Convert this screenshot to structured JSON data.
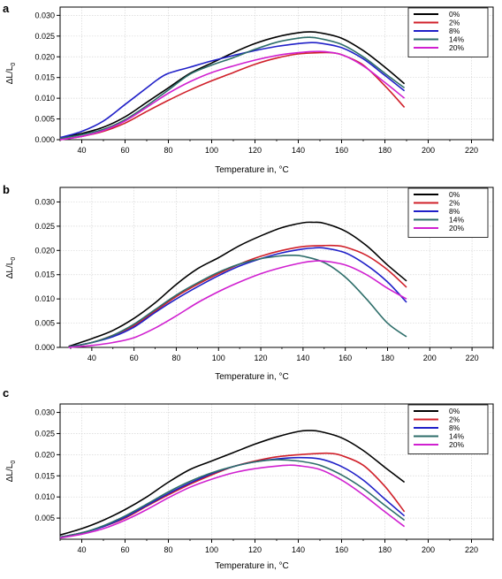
{
  "panels": [
    {
      "letter": "a"
    },
    {
      "letter": "b"
    },
    {
      "letter": "c"
    }
  ],
  "chart_data": [
    {
      "type": "line",
      "panel": "a",
      "xlabel": "Temperature in, °C",
      "ylabel": "ΔL/L0",
      "xlim": [
        30,
        230
      ],
      "ylim": [
        0,
        0.032
      ],
      "xticks": [
        40,
        60,
        80,
        100,
        120,
        140,
        160,
        180,
        200,
        220
      ],
      "yticks": [
        0.0,
        0.005,
        0.01,
        0.015,
        0.02,
        0.025,
        0.03
      ],
      "ytick_labels": [
        "0.000",
        "0.005",
        "0.010",
        "0.015",
        "0.020",
        "0.025",
        "0.030"
      ],
      "grid": true,
      "legend": "top-right",
      "series": [
        {
          "name": "0%",
          "color": "#000000",
          "x": [
            30,
            40,
            50,
            60,
            70,
            80,
            90,
            100,
            110,
            120,
            130,
            140,
            145,
            150,
            160,
            170,
            180,
            189
          ],
          "y": [
            0.0005,
            0.0015,
            0.003,
            0.0055,
            0.009,
            0.0125,
            0.016,
            0.0185,
            0.021,
            0.0232,
            0.0248,
            0.0258,
            0.026,
            0.0258,
            0.0245,
            0.0215,
            0.0175,
            0.0135
          ]
        },
        {
          "name": "2%",
          "color": "#d0202a",
          "x": [
            30,
            40,
            50,
            60,
            70,
            80,
            90,
            100,
            110,
            120,
            130,
            140,
            150,
            155,
            160,
            170,
            180,
            189
          ],
          "y": [
            0.0,
            0.0008,
            0.002,
            0.004,
            0.0068,
            0.0095,
            0.012,
            0.0142,
            0.0162,
            0.0182,
            0.0197,
            0.0207,
            0.021,
            0.021,
            0.0205,
            0.018,
            0.013,
            0.0078
          ]
        },
        {
          "name": "8%",
          "color": "#2020c8",
          "x": [
            30,
            40,
            50,
            60,
            70,
            75,
            80,
            90,
            100,
            110,
            120,
            130,
            140,
            145,
            150,
            160,
            170,
            180,
            189
          ],
          "y": [
            0.0005,
            0.002,
            0.0045,
            0.0085,
            0.0125,
            0.0145,
            0.016,
            0.0175,
            0.019,
            0.0203,
            0.0215,
            0.0225,
            0.0232,
            0.0234,
            0.0233,
            0.0222,
            0.0195,
            0.0155,
            0.0118
          ]
        },
        {
          "name": "14%",
          "color": "#2e6e6a",
          "x": [
            30,
            40,
            50,
            60,
            70,
            80,
            90,
            100,
            110,
            120,
            130,
            140,
            145,
            150,
            160,
            170,
            180,
            189
          ],
          "y": [
            0.0003,
            0.0012,
            0.0025,
            0.0048,
            0.0082,
            0.012,
            0.0158,
            0.018,
            0.0198,
            0.0218,
            0.0235,
            0.0245,
            0.0247,
            0.0244,
            0.023,
            0.02,
            0.016,
            0.0125
          ]
        },
        {
          "name": "20%",
          "color": "#d020d0",
          "x": [
            30,
            40,
            50,
            60,
            70,
            80,
            90,
            100,
            110,
            120,
            130,
            140,
            150,
            160,
            170,
            180,
            189
          ],
          "y": [
            0.0,
            0.0008,
            0.0022,
            0.0045,
            0.0078,
            0.0112,
            0.014,
            0.0162,
            0.0178,
            0.0192,
            0.0203,
            0.021,
            0.0213,
            0.0205,
            0.0178,
            0.0138,
            0.01
          ]
        }
      ]
    },
    {
      "type": "line",
      "panel": "b",
      "xlabel": "Temperature in, °C",
      "ylabel": "ΔL/L0",
      "xlim": [
        25,
        230
      ],
      "ylim": [
        0,
        0.033
      ],
      "xticks": [
        40,
        60,
        80,
        100,
        120,
        140,
        160,
        180,
        200,
        220
      ],
      "yticks": [
        0.0,
        0.005,
        0.01,
        0.015,
        0.02,
        0.025,
        0.03
      ],
      "ytick_labels": [
        "0.000",
        "0.005",
        "0.010",
        "0.015",
        "0.020",
        "0.025",
        "0.030"
      ],
      "grid": true,
      "legend": "top-right",
      "series": [
        {
          "name": "0%",
          "color": "#000000",
          "x": [
            29,
            40,
            50,
            60,
            70,
            80,
            90,
            100,
            110,
            120,
            130,
            140,
            145,
            150,
            160,
            170,
            180,
            189
          ],
          "y": [
            0.0002,
            0.0018,
            0.0035,
            0.006,
            0.0092,
            0.013,
            0.0162,
            0.0185,
            0.021,
            0.023,
            0.0247,
            0.0257,
            0.0258,
            0.0256,
            0.024,
            0.021,
            0.017,
            0.0137
          ]
        },
        {
          "name": "2%",
          "color": "#d0202a",
          "x": [
            29,
            40,
            50,
            60,
            70,
            80,
            90,
            100,
            110,
            120,
            130,
            140,
            150,
            155,
            160,
            170,
            180,
            189
          ],
          "y": [
            0.0001,
            0.001,
            0.0025,
            0.0045,
            0.0075,
            0.0105,
            0.013,
            0.0152,
            0.0172,
            0.0188,
            0.02,
            0.0208,
            0.021,
            0.021,
            0.0207,
            0.019,
            0.016,
            0.0124
          ]
        },
        {
          "name": "8%",
          "color": "#2020c8",
          "x": [
            29,
            40,
            50,
            60,
            70,
            80,
            90,
            100,
            110,
            120,
            130,
            140,
            145,
            150,
            160,
            170,
            180,
            189
          ],
          "y": [
            0.0001,
            0.001,
            0.0022,
            0.0042,
            0.0072,
            0.01,
            0.0125,
            0.0148,
            0.0168,
            0.0183,
            0.0195,
            0.0203,
            0.0205,
            0.0205,
            0.0195,
            0.017,
            0.0135,
            0.0093
          ]
        },
        {
          "name": "14%",
          "color": "#2e6e6a",
          "x": [
            29,
            40,
            50,
            60,
            70,
            80,
            90,
            100,
            110,
            120,
            130,
            135,
            140,
            150,
            160,
            170,
            180,
            189
          ],
          "y": [
            0.0001,
            0.001,
            0.0025,
            0.0048,
            0.0078,
            0.0108,
            0.0133,
            0.0155,
            0.0172,
            0.0183,
            0.0189,
            0.019,
            0.0188,
            0.0175,
            0.0145,
            0.01,
            0.005,
            0.0022
          ]
        },
        {
          "name": "20%",
          "color": "#d020d0",
          "x": [
            29,
            40,
            50,
            60,
            70,
            80,
            90,
            100,
            110,
            120,
            130,
            140,
            145,
            150,
            160,
            170,
            180,
            189
          ],
          "y": [
            0.0,
            0.0004,
            0.001,
            0.002,
            0.004,
            0.0065,
            0.0092,
            0.0115,
            0.0135,
            0.0152,
            0.0165,
            0.0175,
            0.0178,
            0.0178,
            0.017,
            0.015,
            0.0122,
            0.01
          ]
        }
      ]
    },
    {
      "type": "line",
      "panel": "c",
      "xlabel": "Temperature in, °C",
      "ylabel": "ΔL/L0",
      "xlim": [
        30,
        230
      ],
      "ylim": [
        0,
        0.032
      ],
      "xticks": [
        40,
        60,
        80,
        100,
        120,
        140,
        160,
        180,
        200,
        220
      ],
      "yticks": [
        0.005,
        0.01,
        0.015,
        0.02,
        0.025,
        0.03
      ],
      "ytick_labels": [
        "0.005",
        "0.010",
        "0.015",
        "0.020",
        "0.025",
        "0.030"
      ],
      "grid": true,
      "legend": "top-right",
      "series": [
        {
          "name": "0%",
          "color": "#000000",
          "x": [
            30,
            40,
            50,
            60,
            70,
            80,
            90,
            100,
            110,
            120,
            130,
            140,
            145,
            150,
            160,
            170,
            180,
            189
          ],
          "y": [
            0.001,
            0.0025,
            0.0045,
            0.007,
            0.01,
            0.0135,
            0.0165,
            0.0185,
            0.0205,
            0.0225,
            0.0242,
            0.0255,
            0.0257,
            0.0255,
            0.024,
            0.021,
            0.017,
            0.0135
          ]
        },
        {
          "name": "2%",
          "color": "#d0202a",
          "x": [
            30,
            40,
            50,
            60,
            70,
            80,
            90,
            100,
            110,
            120,
            130,
            140,
            150,
            155,
            160,
            170,
            180,
            189
          ],
          "y": [
            0.0005,
            0.0015,
            0.003,
            0.005,
            0.0078,
            0.0105,
            0.013,
            0.0152,
            0.0172,
            0.0185,
            0.0195,
            0.02,
            0.0203,
            0.0203,
            0.0198,
            0.0175,
            0.0125,
            0.0065
          ]
        },
        {
          "name": "8%",
          "color": "#2020c8",
          "x": [
            30,
            40,
            50,
            60,
            70,
            80,
            90,
            100,
            110,
            120,
            130,
            140,
            150,
            160,
            170,
            180,
            189
          ],
          "y": [
            0.0005,
            0.0015,
            0.003,
            0.0052,
            0.008,
            0.0108,
            0.0133,
            0.0155,
            0.0172,
            0.0183,
            0.019,
            0.0193,
            0.019,
            0.0172,
            0.014,
            0.0095,
            0.0055
          ]
        },
        {
          "name": "14%",
          "color": "#2e6e6a",
          "x": [
            30,
            40,
            50,
            60,
            70,
            80,
            90,
            100,
            110,
            120,
            130,
            140,
            150,
            160,
            170,
            180,
            189
          ],
          "y": [
            0.0005,
            0.0015,
            0.0032,
            0.0055,
            0.0083,
            0.0112,
            0.0137,
            0.0157,
            0.0172,
            0.0183,
            0.0188,
            0.0185,
            0.0175,
            0.0152,
            0.012,
            0.008,
            0.0045
          ]
        },
        {
          "name": "20%",
          "color": "#d020d0",
          "x": [
            30,
            40,
            50,
            60,
            70,
            80,
            90,
            100,
            110,
            120,
            130,
            135,
            140,
            150,
            160,
            170,
            180,
            189
          ],
          "y": [
            0.0003,
            0.0012,
            0.0025,
            0.0045,
            0.007,
            0.0098,
            0.0123,
            0.0142,
            0.0157,
            0.0167,
            0.0173,
            0.0175,
            0.0174,
            0.0165,
            0.014,
            0.0105,
            0.0065,
            0.003
          ]
        }
      ]
    }
  ]
}
